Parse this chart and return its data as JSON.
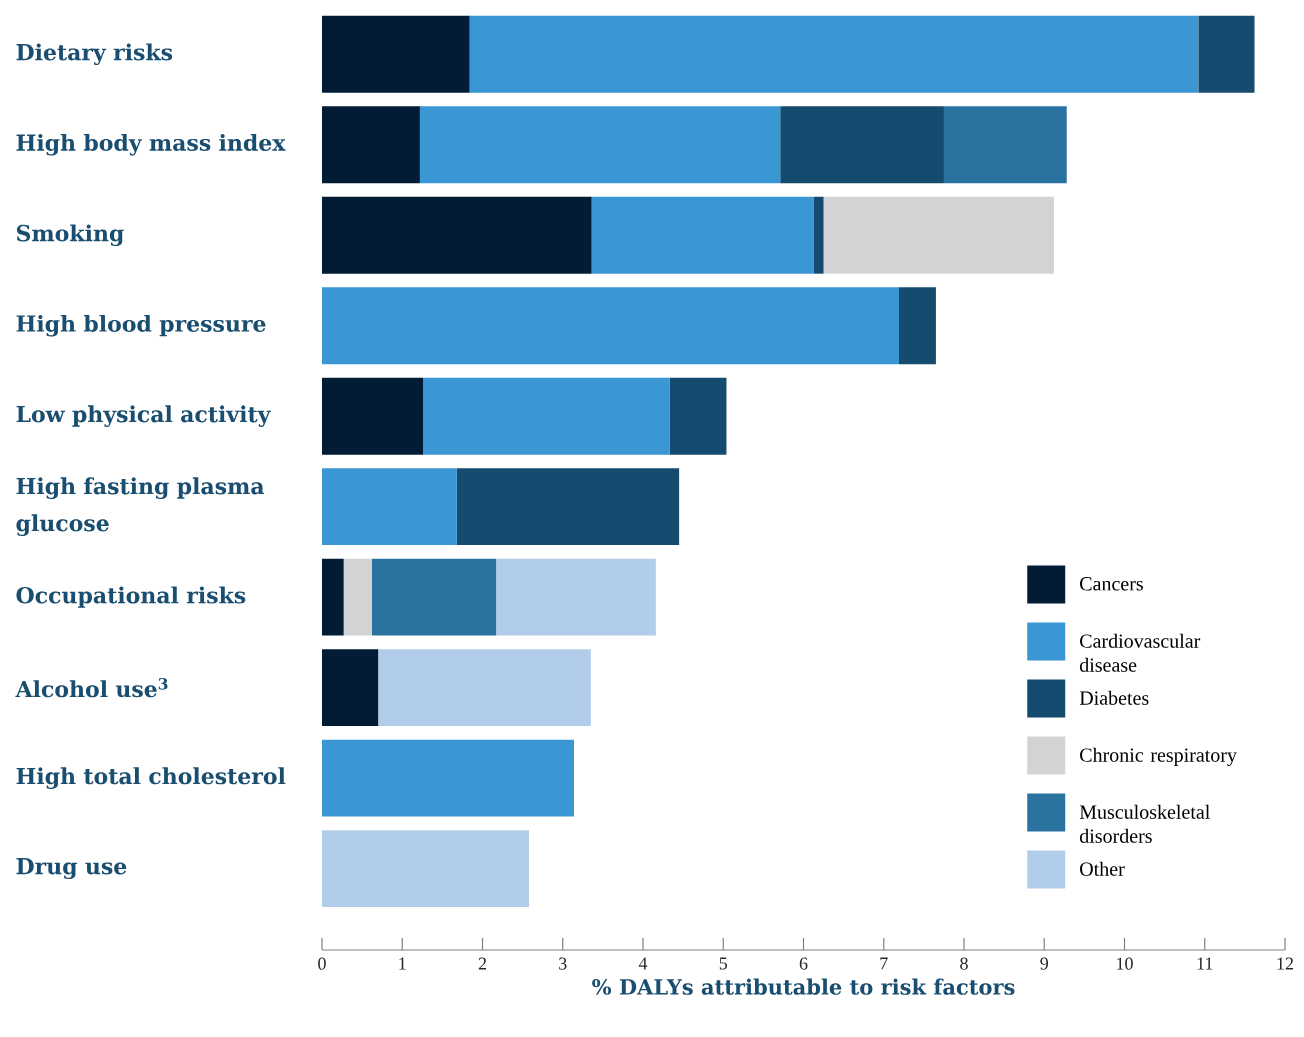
{
  "chart_data": {
    "type": "bar",
    "orientation": "horizontal",
    "stacked": true,
    "xlabel": "% DALYs attributable to risk factors",
    "categories": [
      "Dietary risks",
      "High body mass index",
      "Smoking",
      "High blood pressure",
      "Low physical activity",
      "High fasting plasma glucose",
      "Occupational risks",
      "Alcohol use$^{3}$",
      "High total cholesterol",
      "Drug use"
    ],
    "series": [
      {
        "name": "Cancers",
        "color": "#031c36",
        "values": [
          1.84,
          1.22,
          3.36,
          null,
          1.26,
          null,
          0.27,
          0.7,
          null,
          null
        ]
      },
      {
        "name": "Cardiovascular disease",
        "color": "#3a97d4",
        "values": [
          9.08,
          4.49,
          2.77,
          7.19,
          3.07,
          1.68,
          null,
          null,
          3.14,
          null
        ]
      },
      {
        "name": "Diabetes",
        "color": "#144b6e",
        "values": [
          0.7,
          2.04,
          0.12,
          0.46,
          0.71,
          2.77,
          null,
          null,
          null,
          null
        ]
      },
      {
        "name": "Chronic respiratory",
        "color": "#d2d3d5",
        "values": [
          null,
          null,
          2.87,
          null,
          null,
          null,
          0.35,
          null,
          null,
          null
        ]
      },
      {
        "name": "Musculoskeletal disorders",
        "color": "#2a72a0",
        "values": [
          null,
          1.53,
          null,
          null,
          null,
          null,
          1.55,
          null,
          null,
          null
        ]
      },
      {
        "name": "Other",
        "color": "#b2cdea",
        "values": [
          null,
          null,
          null,
          null,
          null,
          null,
          1.99,
          2.65,
          null,
          2.58
        ]
      }
    ],
    "xlim": [
      0,
      12
    ],
    "xticks": [
      0,
      1,
      2,
      3,
      4,
      5,
      6,
      7,
      8,
      9,
      10,
      11,
      12
    ],
    "grid": false,
    "legend": "bottom right"
  }
}
